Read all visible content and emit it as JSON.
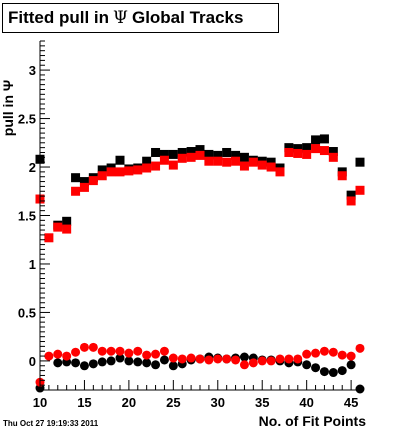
{
  "title": {
    "main": "Fitted pull in",
    "symbol": "Ψ",
    "suffix": "Global Tracks"
  },
  "timestamp": "Thu Oct 27 19:19:33 2011",
  "colors": {
    "series_a": "#000000",
    "series_b": "#ff0000",
    "axis": "#000000"
  },
  "chart_data": {
    "type": "scatter",
    "title": "Fitted pull in Ψ Global Tracks",
    "xlabel": "No. of Fit Points",
    "ylabel": "pull in Ψ",
    "xlim": [
      10,
      46
    ],
    "ylim": [
      -0.3,
      3.3
    ],
    "x_ticks": [
      10,
      15,
      20,
      25,
      30,
      35,
      40,
      45
    ],
    "y_ticks": [
      0,
      0.5,
      1,
      1.5,
      2,
      2.5,
      3
    ],
    "y_tick_labels": [
      "0",
      "0.5",
      "1",
      "1.5",
      "2",
      "2.5",
      "3"
    ],
    "grid": false,
    "x": [
      10,
      11,
      12,
      13,
      14,
      15,
      16,
      17,
      18,
      19,
      20,
      21,
      22,
      23,
      24,
      25,
      26,
      27,
      28,
      29,
      30,
      31,
      32,
      33,
      34,
      35,
      36,
      37,
      38,
      39,
      40,
      41,
      42,
      43,
      44,
      45,
      46
    ],
    "series": [
      {
        "name": "",
        "color": "#000000",
        "values": [
          2.08,
          null,
          1.4,
          1.44,
          1.89,
          1.85,
          1.89,
          1.97,
          1.99,
          2.07,
          1.98,
          1.99,
          2.06,
          2.15,
          2.13,
          2.13,
          2.15,
          2.16,
          2.18,
          2.13,
          2.12,
          2.15,
          2.12,
          2.1,
          2.07,
          2.06,
          2.05,
          1.99,
          2.2,
          2.19,
          2.2,
          2.28,
          2.29,
          2.16,
          1.95,
          1.71,
          2.05
        ]
      },
      {
        "name": "",
        "color": "#ff0000",
        "values": [
          1.67,
          1.27,
          1.38,
          1.36,
          1.75,
          1.79,
          1.86,
          1.91,
          1.95,
          1.95,
          1.96,
          1.97,
          1.99,
          2.01,
          2.07,
          2.02,
          2.09,
          2.1,
          2.12,
          2.06,
          2.06,
          2.05,
          2.06,
          2.01,
          2.05,
          2.02,
          2.0,
          1.95,
          2.15,
          2.14,
          2.13,
          2.19,
          2.17,
          2.1,
          1.91,
          1.65,
          1.76
        ]
      },
      {
        "name": "",
        "color": "#000000",
        "values": [
          -0.28,
          null,
          -0.02,
          -0.01,
          -0.02,
          -0.05,
          -0.03,
          -0.01,
          0.0,
          0.03,
          0.0,
          -0.01,
          -0.02,
          -0.04,
          0.01,
          -0.05,
          -0.03,
          0.01,
          0.02,
          0.04,
          0.03,
          0.02,
          0.03,
          0.04,
          0.03,
          0.01,
          0.01,
          0.0,
          -0.02,
          -0.01,
          -0.04,
          -0.07,
          -0.11,
          -0.12,
          -0.1,
          -0.04,
          -0.32
        ]
      },
      {
        "name": "",
        "color": "#ff0000",
        "values": [
          -0.22,
          0.05,
          0.07,
          0.05,
          0.09,
          0.14,
          0.14,
          0.1,
          0.1,
          0.1,
          0.08,
          0.1,
          0.06,
          0.07,
          0.1,
          0.03,
          0.02,
          0.03,
          0.02,
          0.01,
          0.02,
          0.02,
          0.01,
          -0.04,
          -0.02,
          0.0,
          0.0,
          0.02,
          0.02,
          0.02,
          0.07,
          0.08,
          0.1,
          0.09,
          0.06,
          0.05,
          0.13
        ]
      }
    ]
  }
}
